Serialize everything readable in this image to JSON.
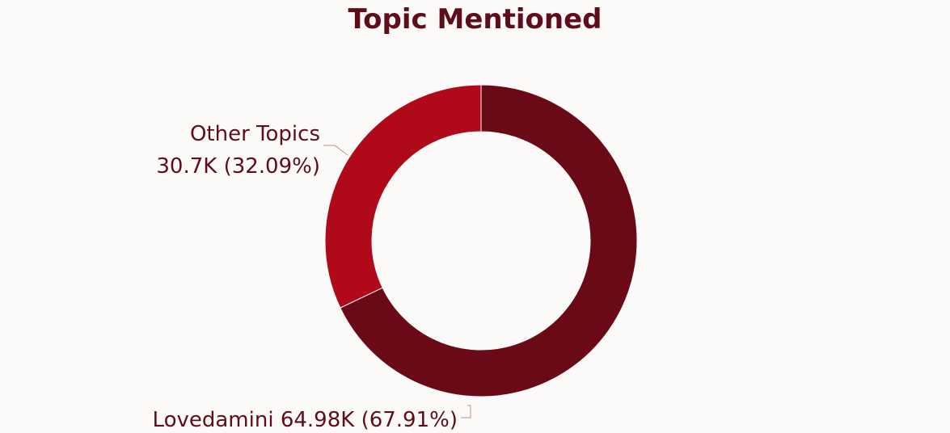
{
  "chart_data": {
    "type": "pie",
    "variant": "donut",
    "title": "Topic Mentioned",
    "slices": [
      {
        "name": "Lovedamini",
        "value": 64.98,
        "value_label": "64.98K",
        "percent": 67.91,
        "percent_label": "(67.91%)",
        "color": "#6a0a16"
      },
      {
        "name": "Other Topics",
        "value": 30.7,
        "value_label": "30.7K",
        "percent": 32.09,
        "percent_label": "(32.09%)",
        "color": "#b0091a"
      }
    ],
    "label_color": "#5e0d19",
    "leader_color": "#c48a90"
  }
}
